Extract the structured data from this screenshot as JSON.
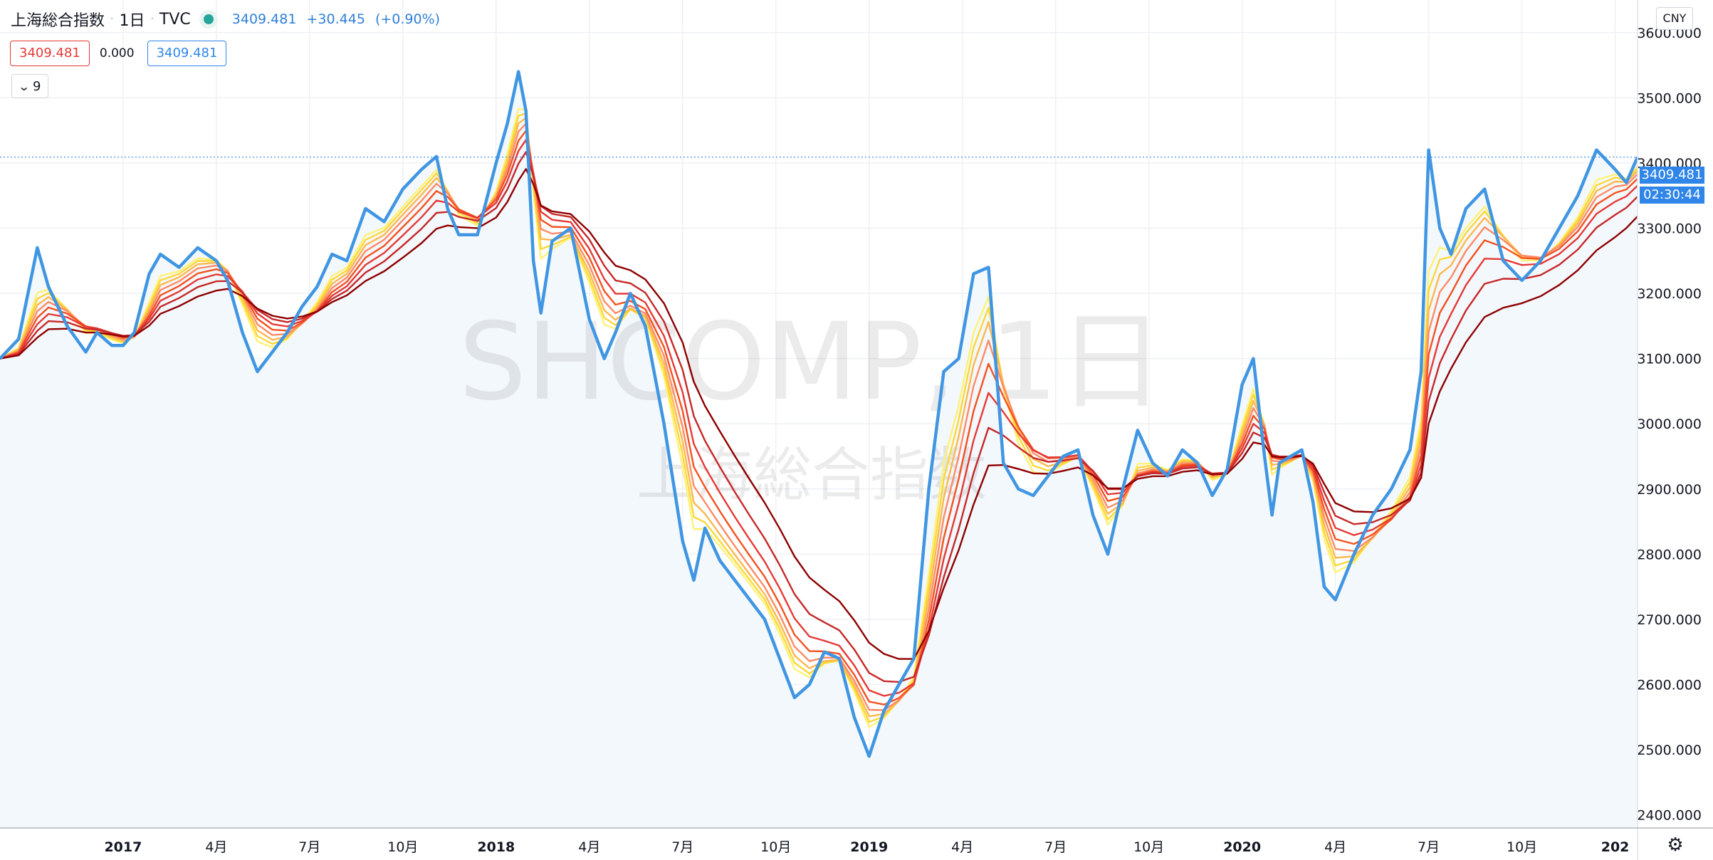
{
  "header": {
    "symbol": "上海総合指数",
    "interval": "1日",
    "exchange": "TVC",
    "price": "3409.481",
    "change": "+30.445",
    "change_pct": "(+0.90%)"
  },
  "legend_values": {
    "value_red": "3409.481",
    "value_zero": "0.000",
    "value_blue": "3409.481"
  },
  "collapse_count": "9",
  "currency": "CNY",
  "last_price_label": "3409.481",
  "countdown": "02:30:44",
  "watermark": {
    "ticker": "SHCOMP, 1日",
    "name": "上海総合指数"
  },
  "colors": {
    "price_line": "#4096e2",
    "area_fill": "#f3f8fd",
    "ribbon": [
      "#fff176",
      "#fdd835",
      "#ffb74d",
      "#ff8a65",
      "#f4511e",
      "#e53935",
      "#c62828",
      "#8e0000"
    ]
  },
  "chart_data": {
    "type": "line",
    "title": "",
    "xlabel": "",
    "ylabel": "",
    "ylim": [
      2380,
      3650
    ],
    "y_ticks": [
      "3600.000",
      "3500.000",
      "3400.000",
      "3300.000",
      "3200.000",
      "3100.000",
      "3000.000",
      "2900.000",
      "2800.000",
      "2700.000",
      "2600.000",
      "2500.000",
      "2400.000"
    ],
    "x_ticks": [
      "2017",
      "4月",
      "7月",
      "10月",
      "2018",
      "4月",
      "7月",
      "10月",
      "2019",
      "4月",
      "7月",
      "10月",
      "2020",
      "4月",
      "7月",
      "10月",
      "202"
    ],
    "x_tick_positions": [
      0.0,
      0.25,
      0.5,
      0.75,
      1.0,
      1.25,
      1.5,
      1.75,
      2.0,
      2.25,
      2.5,
      2.75,
      3.0,
      3.25,
      3.5,
      3.75,
      4.0
    ],
    "x_range": [
      -0.33,
      4.06
    ],
    "grid": true,
    "series": [
      {
        "x": [
          -0.33,
          -0.28,
          -0.23,
          -0.2,
          -0.15,
          -0.1,
          -0.07,
          -0.03,
          0.0,
          0.03,
          0.07,
          0.1,
          0.15,
          0.2,
          0.25,
          0.28,
          0.32,
          0.36,
          0.4,
          0.44,
          0.48,
          0.52,
          0.56,
          0.6,
          0.65,
          0.7,
          0.75,
          0.8,
          0.84,
          0.87,
          0.9,
          0.95,
          1.0,
          1.03,
          1.06,
          1.08,
          1.1,
          1.12,
          1.15,
          1.2,
          1.25,
          1.29,
          1.32,
          1.36,
          1.4,
          1.45,
          1.5,
          1.53,
          1.56,
          1.6,
          1.64,
          1.68,
          1.72,
          1.76,
          1.8,
          1.84,
          1.88,
          1.92,
          1.96,
          2.0,
          2.04,
          2.08,
          2.12,
          2.16,
          2.2,
          2.24,
          2.28,
          2.32,
          2.36,
          2.4,
          2.44,
          2.48,
          2.52,
          2.56,
          2.6,
          2.64,
          2.68,
          2.72,
          2.76,
          2.8,
          2.84,
          2.88,
          2.92,
          2.96,
          3.0,
          3.03,
          3.06,
          3.08,
          3.1,
          3.13,
          3.16,
          3.19,
          3.22,
          3.25,
          3.3,
          3.35,
          3.4,
          3.45,
          3.48,
          3.5,
          3.53,
          3.56,
          3.6,
          3.65,
          3.7,
          3.75,
          3.8,
          3.85,
          3.9,
          3.95,
          4.0,
          4.03,
          4.06
        ],
        "values": [
          3100,
          3130,
          3270,
          3210,
          3150,
          3110,
          3140,
          3120,
          3120,
          3140,
          3230,
          3260,
          3240,
          3270,
          3250,
          3220,
          3140,
          3080,
          3110,
          3140,
          3180,
          3210,
          3260,
          3250,
          3330,
          3310,
          3360,
          3390,
          3410,
          3330,
          3290,
          3290,
          3400,
          3460,
          3540,
          3480,
          3250,
          3170,
          3280,
          3300,
          3160,
          3100,
          3140,
          3200,
          3150,
          3000,
          2820,
          2760,
          2840,
          2790,
          2760,
          2730,
          2700,
          2640,
          2580,
          2600,
          2650,
          2640,
          2550,
          2490,
          2560,
          2600,
          2640,
          2900,
          3080,
          3100,
          3230,
          3240,
          2940,
          2900,
          2890,
          2920,
          2950,
          2960,
          2860,
          2800,
          2900,
          2990,
          2940,
          2920,
          2960,
          2940,
          2890,
          2930,
          3060,
          3100,
          2950,
          2860,
          2940,
          2950,
          2960,
          2880,
          2750,
          2730,
          2800,
          2860,
          2900,
          2960,
          3080,
          3420,
          3300,
          3260,
          3330,
          3360,
          3250,
          3220,
          3250,
          3300,
          3350,
          3420,
          3390,
          3370,
          3409
        ]
      }
    ]
  }
}
